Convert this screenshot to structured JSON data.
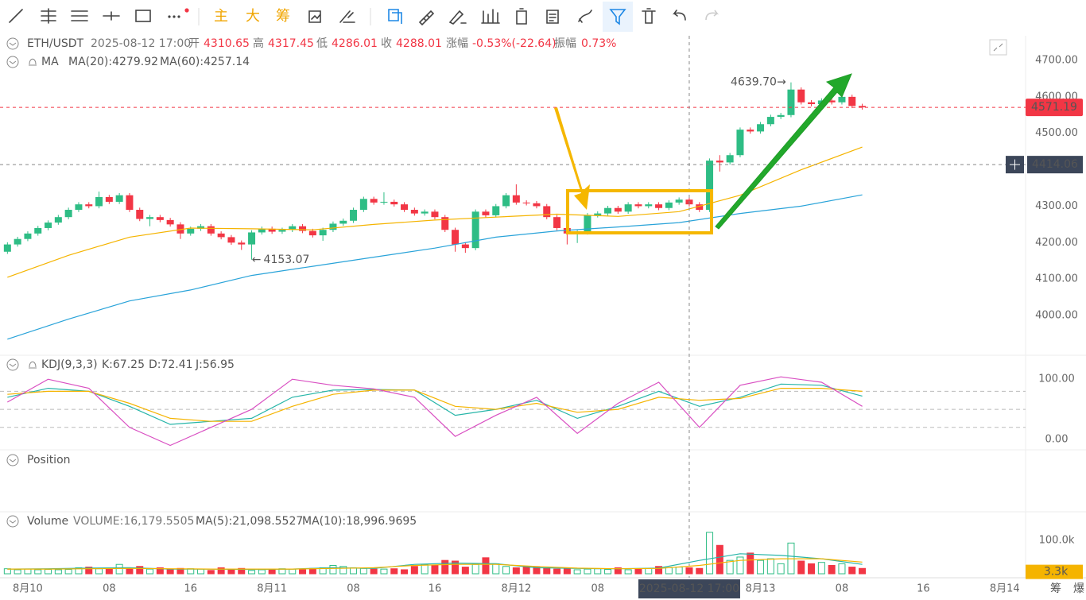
{
  "toolbar": {
    "main": "主",
    "big": "大",
    "chips": "筹"
  },
  "footer": {
    "chips": "筹",
    "liquidation": "爆"
  },
  "panels": {
    "position": "Position"
  },
  "chart_data": [
    {
      "type": "candlestick",
      "symbol": "ETH/USDT",
      "time": "2025-08-12 17:00",
      "stats": [
        {
          "label": "开",
          "value": 4310.65
        },
        {
          "label": "高",
          "value": 4317.45
        },
        {
          "label": "低",
          "value": 4286.01
        },
        {
          "label": "收",
          "value": 4288.01
        },
        {
          "label": "涨幅",
          "value": "-0.53%(-22.64)"
        },
        {
          "label": "振幅",
          "value": "0.73%"
        }
      ],
      "indicator": "MA",
      "x": [
        -2,
        -1,
        0,
        1,
        2,
        3,
        4,
        5,
        6,
        7,
        8,
        9,
        10,
        11,
        12,
        13,
        14,
        15,
        16,
        17,
        18,
        19,
        20,
        21,
        22,
        23,
        24,
        25,
        26,
        27,
        28,
        29,
        30,
        31,
        32,
        33,
        34,
        35,
        36,
        37,
        38,
        39,
        40,
        41,
        42,
        43,
        44,
        45,
        46,
        47,
        48,
        49,
        50,
        51,
        52,
        53,
        54,
        55,
        56,
        57,
        58,
        59,
        60,
        61,
        62,
        63,
        64,
        65,
        66,
        67,
        68,
        69,
        70,
        71,
        72,
        73,
        74,
        75,
        76,
        77,
        78,
        79,
        80,
        81,
        82
      ],
      "open": [
        4175,
        4195,
        4210,
        4225,
        4240,
        4255,
        4270,
        4290,
        4305,
        4300,
        4325,
        4312,
        4330,
        4290,
        4265,
        4270,
        4262,
        4250,
        4225,
        4238,
        4245,
        4225,
        4215,
        4200,
        4195,
        4228,
        4238,
        4230,
        4235,
        4245,
        4232,
        4220,
        4235,
        4252,
        4260,
        4290,
        4320,
        4310,
        4312,
        4305,
        4290,
        4280,
        4285,
        4270,
        4235,
        4195,
        4185,
        4285,
        4275,
        4300,
        4330,
        4310,
        4308,
        4300,
        4270,
        4240,
        4225,
        4228,
        4275,
        4280,
        4295,
        4285,
        4305,
        4300,
        4305,
        4295,
        4310,
        4318,
        4305,
        4290,
        4425,
        4420,
        4440,
        4510,
        4505,
        4525,
        4545,
        4550,
        4620,
        4585,
        4580,
        4590,
        4585,
        4600,
        4575
      ],
      "high": [
        4201,
        4216,
        4231,
        4246,
        4261,
        4276,
        4296,
        4311,
        4311,
        4340,
        4331,
        4336,
        4336,
        4296,
        4276,
        4276,
        4268,
        4256,
        4244,
        4251,
        4251,
        4231,
        4221,
        4206,
        4234,
        4244,
        4244,
        4241,
        4251,
        4251,
        4238,
        4241,
        4258,
        4266,
        4296,
        4326,
        4326,
        4338,
        4318,
        4311,
        4296,
        4291,
        4291,
        4276,
        4241,
        4201,
        4291,
        4291,
        4306,
        4336,
        4360,
        4316,
        4314,
        4306,
        4276,
        4246,
        4234,
        4281,
        4286,
        4301,
        4301,
        4311,
        4311,
        4311,
        4311,
        4316,
        4324,
        4324,
        4311,
        4431,
        4440,
        4446,
        4516,
        4516,
        4531,
        4551,
        4556,
        4639.7,
        4626,
        4591,
        4596,
        4596,
        4606,
        4606,
        4581
      ],
      "low": [
        4169,
        4189,
        4204,
        4219,
        4234,
        4249,
        4264,
        4284,
        4294,
        4294,
        4306,
        4306,
        4284,
        4259,
        4245,
        4256,
        4244,
        4210,
        4219,
        4232,
        4219,
        4209,
        4194,
        4180,
        4153.07,
        4222,
        4224,
        4224,
        4229,
        4226,
        4214,
        4205,
        4229,
        4246,
        4254,
        4284,
        4304,
        4304,
        4299,
        4284,
        4274,
        4274,
        4264,
        4229,
        4175,
        4172,
        4179,
        4269,
        4269,
        4294,
        4304,
        4302,
        4294,
        4264,
        4234,
        4195,
        4199,
        4222,
        4269,
        4274,
        4279,
        4279,
        4294,
        4294,
        4289,
        4289,
        4304,
        4299,
        4284,
        4284,
        4395,
        4414,
        4434,
        4499,
        4499,
        4519,
        4539,
        4544,
        4579,
        4574,
        4574,
        4579,
        4579,
        4569,
        4565
      ],
      "close": [
        4195,
        4210,
        4225,
        4240,
        4255,
        4270,
        4290,
        4305,
        4300,
        4325,
        4312,
        4330,
        4290,
        4265,
        4270,
        4262,
        4250,
        4225,
        4238,
        4245,
        4225,
        4215,
        4200,
        4195,
        4228,
        4238,
        4230,
        4235,
        4245,
        4232,
        4220,
        4235,
        4252,
        4260,
        4290,
        4320,
        4310,
        4312,
        4305,
        4290,
        4280,
        4285,
        4270,
        4235,
        4195,
        4185,
        4285,
        4275,
        4300,
        4330,
        4310,
        4308,
        4300,
        4270,
        4240,
        4225,
        4228,
        4275,
        4280,
        4295,
        4285,
        4305,
        4300,
        4305,
        4295,
        4310,
        4318,
        4305,
        4290,
        4425,
        4420,
        4440,
        4510,
        4505,
        4525,
        4545,
        4550,
        4620,
        4585,
        4580,
        4590,
        4585,
        4600,
        4575,
        4571.19
      ],
      "up_color": "#2ebd85",
      "down_color": "#f23645",
      "series": [
        {
          "name": "MA(20):4279.92",
          "color": "#f5b400",
          "x": [
            -2,
            4,
            10,
            16,
            22,
            28,
            34,
            40,
            46,
            52,
            58,
            64,
            70,
            76,
            82
          ],
          "values": [
            4105,
            4165,
            4215,
            4240,
            4238,
            4235,
            4250,
            4262,
            4270,
            4278,
            4272,
            4285,
            4330,
            4400,
            4462
          ]
        },
        {
          "name": "MA(60):4257.14",
          "color": "#29a3d9",
          "x": [
            -2,
            4,
            10,
            16,
            22,
            28,
            34,
            40,
            46,
            52,
            58,
            64,
            70,
            76,
            82
          ],
          "values": [
            3935,
            3990,
            4040,
            4070,
            4110,
            4135,
            4160,
            4185,
            4215,
            4232,
            4243,
            4255,
            4280,
            4300,
            4331
          ]
        }
      ],
      "xlim": [
        -2.73,
        98.05
      ],
      "xticks": [
        {
          "value": 0,
          "label": "8月10"
        },
        {
          "value": 8,
          "label": "08"
        },
        {
          "value": 16,
          "label": "16"
        },
        {
          "value": 24,
          "label": "8月11"
        },
        {
          "value": 32,
          "label": "08"
        },
        {
          "value": 40,
          "label": "16"
        },
        {
          "value": 48,
          "label": "8月12"
        },
        {
          "value": 56,
          "label": "08"
        },
        {
          "value": 64,
          "label": "16"
        },
        {
          "value": 72,
          "label": "8月13"
        },
        {
          "value": 80,
          "label": "08"
        },
        {
          "value": 88,
          "label": "16"
        },
        {
          "value": 96,
          "label": "8月14"
        }
      ],
      "ylim": [
        3891,
        4767.6
      ],
      "yticks": [
        {
          "value": 4700,
          "label": "4700.00"
        },
        {
          "value": 4600,
          "label": "4600.00"
        },
        {
          "value": 4500,
          "label": "4500.00"
        },
        {
          "value": 4300,
          "label": "4300.00"
        },
        {
          "value": 4200,
          "label": "4200.00"
        },
        {
          "value": 4100,
          "label": "4100.00"
        },
        {
          "value": 4000,
          "label": "4000.00"
        }
      ],
      "grid": false,
      "last_price": 4571.19,
      "crosshair": {
        "x": 65,
        "label": "2025-08-12 17:00",
        "price": 4414.06
      },
      "annotations": [
        {
          "x": 75,
          "value": 4639.7,
          "label": "4639.70"
        },
        {
          "x": 22,
          "value": 4153.07,
          "label": "4153.07"
        }
      ]
    },
    {
      "type": "line",
      "title": "KDJ(9,3,3)",
      "x": [
        -2,
        2,
        6,
        10,
        14,
        18,
        22,
        26,
        30,
        34,
        38,
        42,
        46,
        50,
        54,
        58,
        62,
        66,
        70,
        74,
        78,
        82
      ],
      "series": [
        {
          "name": "K:67.25",
          "color": "#26b5a8",
          "values": [
            70,
            85,
            80,
            55,
            25,
            30,
            35,
            70,
            82,
            83,
            82,
            40,
            50,
            65,
            35,
            55,
            80,
            55,
            70,
            92,
            90,
            72
          ]
        },
        {
          "name": "D:72.41",
          "color": "#f5b400",
          "values": [
            75,
            80,
            80,
            60,
            35,
            30,
            30,
            55,
            75,
            82,
            82,
            55,
            50,
            60,
            45,
            50,
            70,
            65,
            68,
            85,
            85,
            80
          ]
        },
        {
          "name": "J:56.95",
          "color": "#d94fc2",
          "values": [
            62,
            100,
            85,
            20,
            -10,
            20,
            50,
            100,
            90,
            84,
            70,
            5,
            40,
            70,
            10,
            60,
            95,
            20,
            90,
            104,
            95,
            55
          ]
        }
      ],
      "ylim": [
        -16,
        136
      ],
      "yticks": [
        {
          "value": 100,
          "label": "100.00"
        },
        {
          "value": 0,
          "label": "0.00"
        }
      ],
      "levels": [
        80,
        50,
        20
      ]
    },
    {
      "type": "bar",
      "title": "Volume",
      "volume_label": "VOLUME:16,179.5505",
      "values": [
        15000,
        12000,
        14000,
        12000,
        13000,
        12000,
        13000,
        18000,
        20000,
        15000,
        14000,
        28000,
        16000,
        22000,
        14000,
        18000,
        12000,
        16000,
        15000,
        14000,
        10000,
        18000,
        14000,
        16000,
        10000,
        12000,
        14000,
        15000,
        14000,
        12000,
        16000,
        18000,
        25000,
        22000,
        18000,
        16000,
        14000,
        14000,
        15000,
        12000,
        22000,
        28000,
        25000,
        40000,
        38000,
        20000,
        28000,
        48000,
        30000,
        22000,
        18000,
        22000,
        20000,
        18000,
        14000,
        16000,
        12000,
        14000,
        15000,
        13000,
        18000,
        12000,
        14000,
        16000,
        22000,
        18000,
        20000,
        18000,
        16000,
        124000,
        85000,
        40000,
        50000,
        62000,
        40000,
        45000,
        30000,
        92000,
        38000,
        30000,
        34000,
        25000,
        30000,
        20000,
        16000
      ],
      "series": [
        {
          "name": "MA(5):21,098.5527",
          "color": "#26b5a8",
          "x": [
            -2,
            2,
            6,
            10,
            14,
            18,
            22,
            26,
            30,
            34,
            38,
            42,
            46,
            50,
            54,
            58,
            62,
            66,
            70,
            74,
            78,
            82
          ],
          "values": [
            14000,
            15000,
            17000,
            18000,
            14000,
            14000,
            13000,
            14000,
            18000,
            16000,
            28000,
            32000,
            30000,
            18000,
            16000,
            15000,
            17000,
            40000,
            60000,
            55000,
            45000,
            28000
          ]
        },
        {
          "name": "MA(10):18,996.9695",
          "color": "#f5b400",
          "x": [
            -2,
            2,
            6,
            10,
            14,
            18,
            22,
            26,
            30,
            34,
            38,
            42,
            46,
            50,
            54,
            58,
            62,
            66,
            70,
            74,
            78,
            82
          ],
          "values": [
            14000,
            14000,
            15000,
            16000,
            15000,
            14000,
            14000,
            14000,
            16000,
            18000,
            25000,
            28000,
            28000,
            22000,
            17000,
            15000,
            16000,
            25000,
            40000,
            45000,
            45000,
            35000
          ]
        }
      ],
      "ylim": [
        0,
        176000
      ],
      "yticks": [
        {
          "value": 100000,
          "label": "100.0k"
        }
      ],
      "last": {
        "value": 3300,
        "label": "3.3k"
      }
    }
  ]
}
